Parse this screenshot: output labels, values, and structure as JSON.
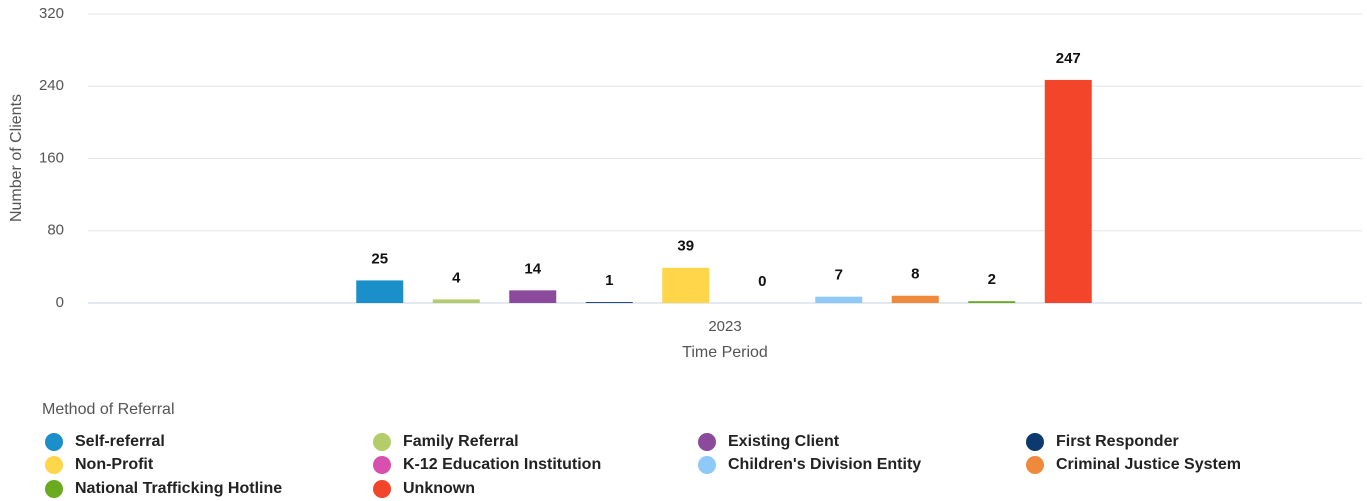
{
  "chart_data": {
    "type": "bar",
    "categories": [
      "2023"
    ],
    "x_label": "Time Period",
    "y_label": "Number of Clients",
    "legend_title": "Method of Referral",
    "ylim": [
      0,
      320
    ],
    "yticks": [
      0,
      80,
      160,
      240,
      320
    ],
    "grid": true,
    "series": [
      {
        "name": "Self-referral",
        "color": "#1a8fc9",
        "values": [
          25
        ]
      },
      {
        "name": "Family Referral",
        "color": "#b5cc6a",
        "values": [
          4
        ]
      },
      {
        "name": "Existing Client",
        "color": "#8b4a9c",
        "values": [
          14
        ]
      },
      {
        "name": "First Responder",
        "color": "#0d3a6e",
        "values": [
          1
        ]
      },
      {
        "name": "Non-Profit",
        "color": "#ffd54a",
        "values": [
          39
        ]
      },
      {
        "name": "K-12 Education Institution",
        "color": "#d94fb0",
        "values": [
          0
        ]
      },
      {
        "name": "Children's Division Entity",
        "color": "#8ec9f7",
        "values": [
          7
        ]
      },
      {
        "name": "Criminal Justice System",
        "color": "#ef8a3c",
        "values": [
          8
        ]
      },
      {
        "name": "National Trafficking Hotline",
        "color": "#6aaa1f",
        "values": [
          2
        ]
      },
      {
        "name": "Unknown",
        "color": "#f2452a",
        "values": [
          247
        ]
      }
    ]
  }
}
